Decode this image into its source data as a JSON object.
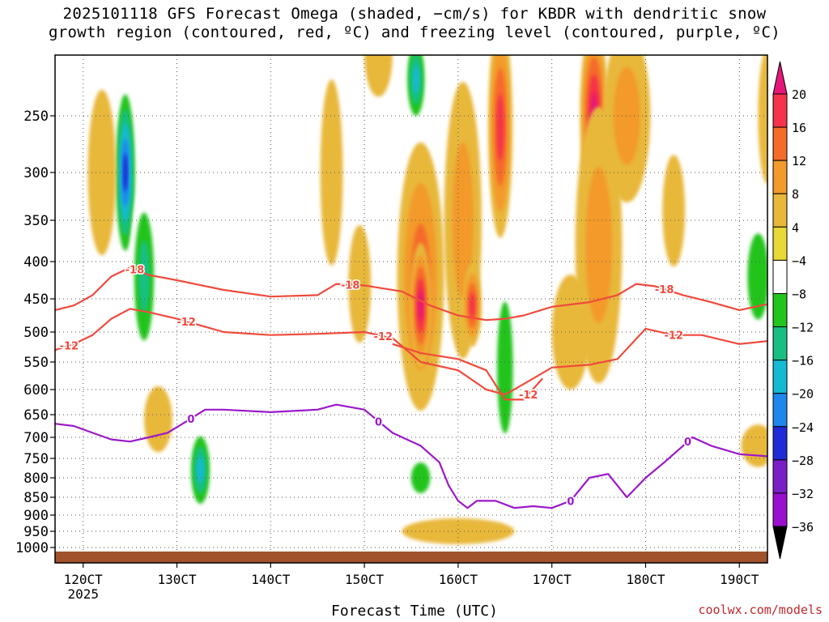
{
  "title_line1": "2025101118 GFS Forecast Omega (shaded, −cm/s) for KBDR with dendritic snow",
  "title_line2": "growth region (contoured, red, ºC) and freezing level (contoured, purple, ºC)",
  "credit": "coolwx.com/models",
  "chart_data": {
    "type": "heatmap",
    "title": "2025101118 GFS Forecast Omega (shaded, −cm/s) for KBDR with dendritic snow growth region (contoured, red, ºC) and freezing level (contoured, purple, ºC)",
    "xlabel": "Forecast Time (UTC)",
    "ylabel": "Pressure (hPa)",
    "x_range_hours": [
      117,
      193
    ],
    "y_range_hpa": [
      1010,
      200
    ],
    "x_ticks": [
      {
        "hour": 120,
        "label": "120CT",
        "sublabel": "2025"
      },
      {
        "hour": 130,
        "label": "130CT"
      },
      {
        "hour": 140,
        "label": "140CT"
      },
      {
        "hour": 150,
        "label": "150CT"
      },
      {
        "hour": 160,
        "label": "160CT"
      },
      {
        "hour": 170,
        "label": "170CT"
      },
      {
        "hour": 180,
        "label": "180CT"
      },
      {
        "hour": 190,
        "label": "190CT"
      }
    ],
    "y_ticks": [
      250,
      300,
      350,
      400,
      450,
      500,
      550,
      600,
      650,
      700,
      750,
      800,
      850,
      900,
      950,
      1000
    ],
    "colorbar": {
      "levels": [
        20,
        16,
        12,
        8,
        4,
        -4,
        -8,
        -12,
        -16,
        -20,
        -24,
        -28,
        -32,
        -36
      ],
      "colors": [
        "#f5334a",
        "#f56b2a",
        "#f39a2c",
        "#e8b83a",
        "#e8d838",
        "#ffffff",
        "#22c41e",
        "#19bf82",
        "#16b9d2",
        "#1f86ee",
        "#1f2bd6",
        "#7a1fc8",
        "#9a0fcf",
        "#a8a8a8"
      ],
      "top_arrow_color": "#e6177a",
      "bottom_arrow_color": "#000000"
    },
    "omega_blobs": [
      {
        "h": 124.5,
        "p": 300,
        "rh": 1.2,
        "rp": 90,
        "v": -26
      },
      {
        "h": 126.5,
        "p": 420,
        "rh": 1.5,
        "rp": 120,
        "v": -14
      },
      {
        "h": 132.5,
        "p": 780,
        "rh": 1.3,
        "rp": 110,
        "v": -18
      },
      {
        "h": 122,
        "p": 300,
        "rh": 1.5,
        "rp": 80,
        "v": 6
      },
      {
        "h": 128,
        "p": 660,
        "rh": 1.5,
        "rp": 70,
        "v": 8
      },
      {
        "h": 146.5,
        "p": 300,
        "rh": 1.2,
        "rp": 90,
        "v": 5
      },
      {
        "h": 149.5,
        "p": 430,
        "rh": 1.2,
        "rp": 80,
        "v": 9
      },
      {
        "h": 151.5,
        "p": 200,
        "rh": 1.5,
        "rp": 70,
        "v": 6
      },
      {
        "h": 155.5,
        "p": 220,
        "rh": 1.2,
        "rp": 60,
        "v": -18
      },
      {
        "h": 156,
        "p": 420,
        "rh": 2.5,
        "rp": 170,
        "v": 14
      },
      {
        "h": 156,
        "p": 460,
        "rh": 1.1,
        "rp": 90,
        "v": 22
      },
      {
        "h": 160.5,
        "p": 350,
        "rh": 2.0,
        "rp": 150,
        "v": 12
      },
      {
        "h": 161.5,
        "p": 460,
        "rh": 1.0,
        "rp": 60,
        "v": 20
      },
      {
        "h": 164.5,
        "p": 260,
        "rh": 1.3,
        "rp": 160,
        "v": 20
      },
      {
        "h": 165,
        "p": 560,
        "rh": 1.5,
        "rp": 200,
        "v": -12
      },
      {
        "h": 156,
        "p": 800,
        "rh": 1.8,
        "rp": 70,
        "v": -10
      },
      {
        "h": 174.5,
        "p": 250,
        "rh": 1.5,
        "rp": 130,
        "v": 22
      },
      {
        "h": 175,
        "p": 380,
        "rh": 2.5,
        "rp": 160,
        "v": 12
      },
      {
        "h": 178,
        "p": 250,
        "rh": 2.5,
        "rp": 110,
        "v": 12
      },
      {
        "h": 172,
        "p": 500,
        "rh": 2.0,
        "rp": 90,
        "v": 5
      },
      {
        "h": 192,
        "p": 420,
        "rh": 2.0,
        "rp": 100,
        "v": -12
      },
      {
        "h": 193,
        "p": 250,
        "rh": 1.0,
        "rp": 70,
        "v": 5
      },
      {
        "h": 192,
        "p": 720,
        "rh": 1.8,
        "rp": 50,
        "v": 5
      },
      {
        "h": 160,
        "p": 950,
        "rh": 6.0,
        "rp": 40,
        "v": 6
      },
      {
        "h": 120,
        "p": 950,
        "rh": 1.5,
        "rp": 80,
        "v": -8
      },
      {
        "h": 183,
        "p": 340,
        "rh": 1.2,
        "rp": 60,
        "v": 5
      },
      {
        "h": 188,
        "p": 480,
        "rh": 1.5,
        "rp": 60,
        "v": -6
      }
    ],
    "contours": [
      {
        "label": "-18",
        "color": "#f04a3c",
        "x": [
          117,
          119,
          121,
          123,
          125,
          127,
          130,
          135,
          140,
          145,
          147,
          150,
          154,
          157,
          160,
          163,
          165,
          167,
          170,
          174,
          177,
          179,
          181,
          184,
          187,
          190,
          193
        ],
        "y": [
          467,
          460,
          445,
          420,
          408,
          418,
          425,
          438,
          447,
          445,
          430,
          432,
          440,
          460,
          475,
          482,
          480,
          475,
          462,
          455,
          445,
          430,
          433,
          445,
          455,
          467,
          458
        ],
        "labels_at": [
          {
            "h": 125.5,
            "text": "-18"
          },
          {
            "h": 148.5,
            "text": "-18"
          },
          {
            "h": 182,
            "text": "-18"
          }
        ]
      },
      {
        "label": "-12",
        "color": "#f04a3c",
        "x": [
          117,
          119,
          121,
          123,
          125,
          127,
          130,
          135,
          140,
          145,
          150,
          153,
          156,
          160,
          163,
          165,
          167,
          170,
          174,
          177,
          180,
          183,
          186,
          190,
          193
        ],
        "y": [
          530,
          520,
          505,
          480,
          465,
          470,
          480,
          500,
          505,
          503,
          500,
          510,
          550,
          565,
          600,
          610,
          590,
          560,
          555,
          545,
          495,
          505,
          505,
          520,
          515
        ],
        "labels_at": [
          {
            "h": 118.5,
            "text": "-12"
          },
          {
            "h": 131,
            "text": "-12"
          },
          {
            "h": 152,
            "text": "-12"
          },
          {
            "h": 183,
            "text": "-12"
          }
        ]
      },
      {
        "label": "-12b",
        "color": "#f04a3c",
        "x": [
          153,
          156,
          160,
          163,
          165,
          167,
          169
        ],
        "y": [
          520,
          535,
          545,
          565,
          620,
          620,
          580
        ],
        "labels_at": [
          {
            "h": 167.5,
            "text": "-12"
          }
        ]
      },
      {
        "label": "0",
        "color": "#9b18c9",
        "x": [
          117,
          119,
          121,
          123,
          125,
          127,
          129,
          131,
          133,
          135,
          140,
          145,
          147,
          150,
          153,
          156,
          158,
          159,
          160,
          161,
          162,
          164,
          166,
          168,
          170,
          172,
          174,
          176,
          178,
          180,
          182,
          184,
          185,
          187,
          190,
          193
        ],
        "y": [
          670,
          675,
          690,
          705,
          710,
          700,
          690,
          665,
          640,
          640,
          645,
          640,
          630,
          640,
          690,
          720,
          760,
          820,
          860,
          880,
          860,
          860,
          880,
          875,
          880,
          860,
          800,
          790,
          850,
          800,
          760,
          720,
          700,
          720,
          740,
          745
        ],
        "labels_at": [
          {
            "h": 131.5,
            "text": "0"
          },
          {
            "h": 151.5,
            "text": "0"
          },
          {
            "h": 172,
            "text": "0"
          },
          {
            "h": 184.5,
            "text": "0"
          }
        ]
      }
    ]
  }
}
